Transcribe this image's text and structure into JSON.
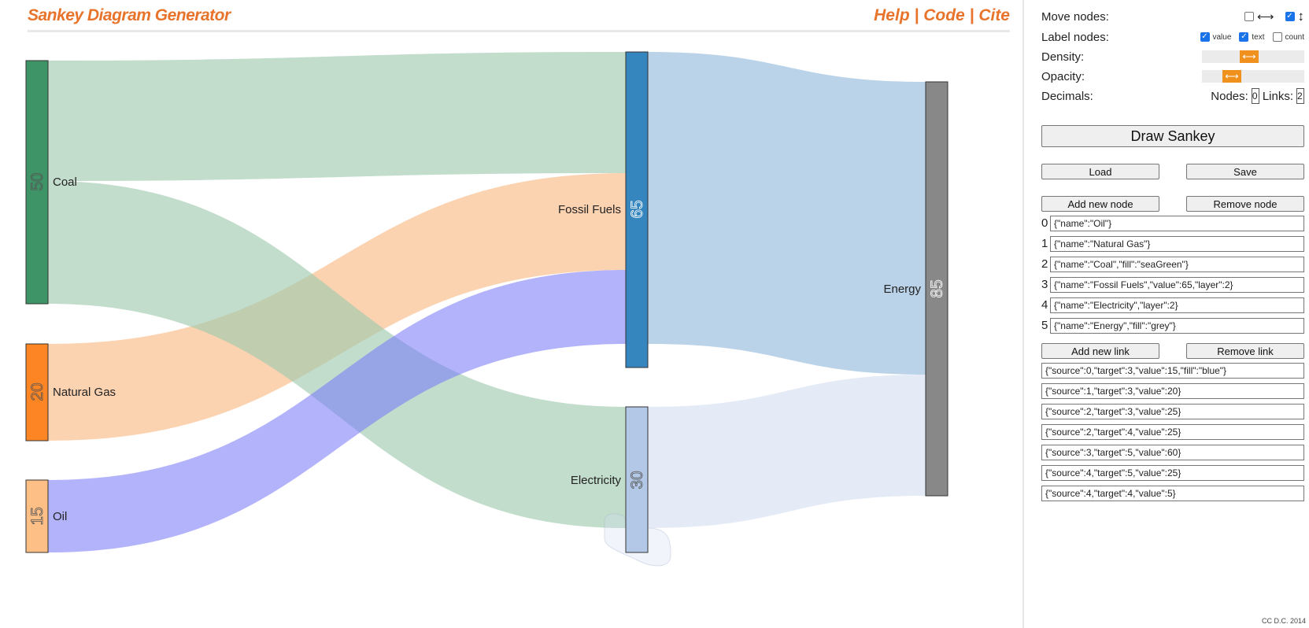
{
  "header": {
    "title": "Sankey Diagram Generator",
    "links": [
      "Help",
      "Code",
      "Cite"
    ],
    "separator": "|"
  },
  "controls": {
    "move_nodes_label": "Move nodes:",
    "move_horizontal_checked": false,
    "move_horizontal_glyph": "⟷",
    "move_vertical_checked": true,
    "move_vertical_glyph": "↕",
    "label_nodes_label": "Label nodes:",
    "label_value": "value",
    "label_value_checked": true,
    "label_text": "text",
    "label_text_checked": true,
    "label_count": "count",
    "label_count_checked": false,
    "density_label": "Density:",
    "density_level": 0.37,
    "opacity_label": "Opacity:",
    "opacity_level": 0.2,
    "decimals_label": "Decimals:",
    "decimals_nodes_label": "Nodes:",
    "decimals_nodes_value": "0",
    "decimals_links_label": "Links:",
    "decimals_links_value": "2",
    "draw_button": "Draw Sankey",
    "load_button": "Load",
    "save_button": "Save",
    "add_node_button": "Add new node",
    "remove_node_button": "Remove node",
    "add_link_button": "Add new link",
    "remove_link_button": "Remove link"
  },
  "node_entries": [
    "{\"name\":\"Oil\"}",
    "{\"name\":\"Natural Gas\"}",
    "{\"name\":\"Coal\",\"fill\":\"seaGreen\"}",
    "{\"name\":\"Fossil Fuels\",\"value\":65,\"layer\":2}",
    "{\"name\":\"Electricity\",\"layer\":2}",
    "{\"name\":\"Energy\",\"fill\":\"grey\"}"
  ],
  "link_entries": [
    "{\"source\":0,\"target\":3,\"value\":15,\"fill\":\"blue\"}",
    "{\"source\":1,\"target\":3,\"value\":20}",
    "{\"source\":2,\"target\":3,\"value\":25}",
    "{\"source\":2,\"target\":4,\"value\":25}",
    "{\"source\":3,\"target\":5,\"value\":60}",
    "{\"source\":4,\"target\":5,\"value\":25}",
    "{\"source\":4,\"target\":4,\"value\":5}"
  ],
  "diagram": {
    "nodes": [
      {
        "name": "Coal",
        "value": "50",
        "fill": "#3e9466"
      },
      {
        "name": "Natural Gas",
        "value": "20",
        "fill": "#fd8523"
      },
      {
        "name": "Oil",
        "value": "15",
        "fill": "#fdbf86"
      },
      {
        "name": "Fossil Fuels",
        "value": "65",
        "fill": "#3585bf"
      },
      {
        "name": "Electricity",
        "value": "30",
        "fill": "#b3c8e6"
      },
      {
        "name": "Energy",
        "value": "85",
        "fill": "#888888"
      }
    ],
    "link_colors": {
      "coal": "#9ec9ae",
      "gas": "#fbb984",
      "oil": "#7575f9",
      "fossil": "#8db5da",
      "electricity": "#cfdbef"
    }
  },
  "footer": {
    "credit": "CC D.C. 2014"
  }
}
